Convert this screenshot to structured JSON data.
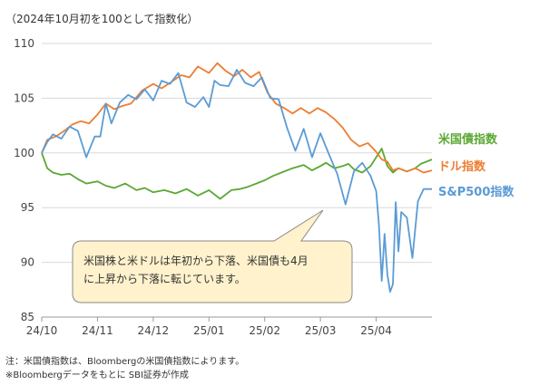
{
  "chart_data": {
    "type": "line",
    "title": "（2024年10月初を100として指数化）",
    "xlabel": "",
    "ylabel": "",
    "ylim": [
      85,
      110
    ],
    "y_ticks": [
      "85",
      "90",
      "95",
      "100",
      "105",
      "110"
    ],
    "x_ticks": [
      "24/10",
      "24/11",
      "24/12",
      "25/01",
      "25/02",
      "25/03",
      "25/04"
    ],
    "x_range": [
      0,
      7.0
    ],
    "grid": "horizontal",
    "legend": "right, labels at line ends",
    "series": [
      {
        "name": "米国債指数",
        "color": "#5aa832",
        "x": [
          0.0,
          0.1,
          0.2,
          0.35,
          0.5,
          0.65,
          0.8,
          1.0,
          1.15,
          1.3,
          1.5,
          1.7,
          1.85,
          2.0,
          2.2,
          2.4,
          2.6,
          2.8,
          3.0,
          3.2,
          3.4,
          3.55,
          3.7,
          3.85,
          4.0,
          4.15,
          4.3,
          4.5,
          4.7,
          4.85,
          5.0,
          5.1,
          5.25,
          5.4,
          5.5,
          5.6,
          5.75,
          5.9,
          6.0,
          6.1,
          6.2,
          6.3,
          6.4,
          6.55,
          6.7,
          6.8,
          6.9,
          7.0
        ],
        "values": [
          100,
          98.6,
          98.2,
          98.0,
          98.1,
          97.6,
          97.2,
          97.4,
          97.0,
          96.8,
          97.2,
          96.6,
          96.8,
          96.4,
          96.6,
          96.3,
          96.7,
          96.1,
          96.6,
          95.8,
          96.6,
          96.7,
          96.9,
          97.2,
          97.5,
          97.9,
          98.2,
          98.6,
          98.9,
          98.4,
          98.8,
          99.1,
          98.6,
          98.8,
          99.0,
          98.5,
          98.2,
          98.8,
          99.6,
          100.4,
          98.8,
          98.2,
          98.6,
          98.3,
          98.6,
          99.0,
          99.2,
          99.4
        ]
      },
      {
        "name": "ドル指数",
        "color": "#ed7d31",
        "x": [
          0.0,
          0.1,
          0.25,
          0.4,
          0.55,
          0.7,
          0.85,
          1.0,
          1.15,
          1.3,
          1.45,
          1.6,
          1.8,
          2.0,
          2.15,
          2.3,
          2.5,
          2.65,
          2.8,
          3.0,
          3.15,
          3.3,
          3.45,
          3.6,
          3.75,
          3.9,
          4.05,
          4.2,
          4.35,
          4.5,
          4.65,
          4.8,
          4.95,
          5.1,
          5.25,
          5.4,
          5.55,
          5.7,
          5.85,
          6.0,
          6.1,
          6.2,
          6.3,
          6.4,
          6.55,
          6.7,
          6.85,
          7.0
        ],
        "values": [
          100,
          101.2,
          101.5,
          102.0,
          102.6,
          102.9,
          102.7,
          103.5,
          104.5,
          104.0,
          104.3,
          104.5,
          105.7,
          106.3,
          105.9,
          106.4,
          107.1,
          106.9,
          107.9,
          107.3,
          108.2,
          107.5,
          107.0,
          107.6,
          106.9,
          107.4,
          105.5,
          104.5,
          104.1,
          103.6,
          104.1,
          103.6,
          104.1,
          103.7,
          103.1,
          102.3,
          101.2,
          100.6,
          100.9,
          100.1,
          99.4,
          99.2,
          98.4,
          98.6,
          98.3,
          98.6,
          98.2,
          98.4
        ]
      },
      {
        "name": "S&P500指数",
        "color": "#5b9bd5",
        "x": [
          0.0,
          0.1,
          0.2,
          0.35,
          0.5,
          0.65,
          0.8,
          0.95,
          1.05,
          1.15,
          1.25,
          1.4,
          1.55,
          1.7,
          1.85,
          2.0,
          2.15,
          2.3,
          2.45,
          2.6,
          2.75,
          2.9,
          3.0,
          3.1,
          3.2,
          3.35,
          3.5,
          3.65,
          3.8,
          3.95,
          4.1,
          4.25,
          4.4,
          4.55,
          4.7,
          4.85,
          5.0,
          5.15,
          5.3,
          5.45,
          5.6,
          5.75,
          5.9,
          6.0,
          6.05,
          6.1,
          6.15,
          6.2,
          6.25,
          6.3,
          6.35,
          6.4,
          6.45,
          6.55,
          6.65,
          6.75,
          6.85,
          7.0
        ],
        "values": [
          100,
          101.0,
          101.7,
          101.3,
          102.4,
          102.0,
          99.6,
          101.5,
          101.5,
          104.5,
          102.7,
          104.6,
          105.3,
          104.9,
          105.8,
          104.8,
          106.6,
          106.3,
          107.3,
          104.6,
          104.2,
          105.1,
          104.2,
          106.6,
          106.2,
          106.1,
          107.6,
          106.4,
          106.1,
          106.9,
          105.0,
          104.9,
          102.3,
          100.2,
          102.2,
          99.6,
          101.8,
          99.9,
          98.1,
          95.3,
          98.3,
          99.1,
          97.9,
          96.5,
          93.4,
          88.3,
          92.6,
          88.9,
          87.3,
          88.0,
          95.5,
          91.0,
          94.6,
          94.1,
          90.4,
          95.6,
          96.7,
          96.7
        ]
      }
    ],
    "annotation": "米国株と米ドルは年初から下落、米国債も4月に上昇から下落に転じています。"
  },
  "notes": {
    "line1": "注：米国債指数は、Bloombergの米国債指数によります。",
    "line2": "※Bloombergデータをもとに SBI証券が作成"
  }
}
